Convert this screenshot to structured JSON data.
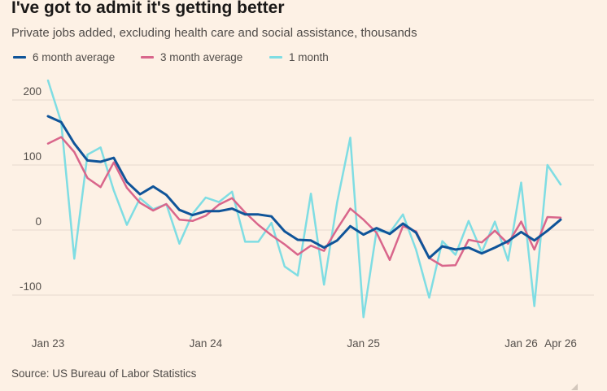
{
  "title": "I've got to admit it's getting better",
  "subtitle": "Private jobs added, excluding health care and social assistance, thousands",
  "source": "Source: US Bureau of Labor Statistics",
  "legend": [
    {
      "label": "6 month average",
      "color": "#0f5499"
    },
    {
      "label": "3 month average",
      "color": "#d9668b"
    },
    {
      "label": "1 month",
      "color": "#7fdde3"
    }
  ],
  "chart_data": {
    "type": "line",
    "x": [
      "2023-01",
      "2023-02",
      "2023-03",
      "2023-04",
      "2023-05",
      "2023-06",
      "2023-07",
      "2023-08",
      "2023-09",
      "2023-10",
      "2023-11",
      "2023-12",
      "2024-01",
      "2024-02",
      "2024-03",
      "2024-04",
      "2024-05",
      "2024-06",
      "2024-07",
      "2024-08",
      "2024-09",
      "2024-10",
      "2024-11",
      "2024-12",
      "2025-01",
      "2025-02",
      "2025-03",
      "2025-04",
      "2025-05",
      "2025-06",
      "2025-07",
      "2025-08",
      "2025-09",
      "2025-10",
      "2025-11",
      "2025-12",
      "2026-01",
      "2026-02",
      "2026-03",
      "2026-04"
    ],
    "x_tick_labels": [
      "Jan 23",
      "Jan 24",
      "Jan 25",
      "Jan 26",
      "Apr 26"
    ],
    "x_tick_positions": [
      "2023-01",
      "2024-01",
      "2025-01",
      "2026-01",
      "2026-04"
    ],
    "y_ticks": [
      200,
      100,
      0,
      -100
    ],
    "ylim": [
      -140,
      235
    ],
    "grid": "horizontal",
    "legend_position": "top-left",
    "series": [
      {
        "name": "6 month average",
        "color": "#0f5499",
        "width": 3,
        "values": [
          175,
          166,
          133,
          107,
          105,
          111,
          74,
          55,
          67,
          54,
          31,
          23,
          29,
          29,
          33,
          24,
          24,
          21,
          -2,
          -15,
          -16,
          -27,
          -16,
          6,
          -7,
          3,
          -6,
          10,
          -4,
          -43,
          -25,
          -30,
          -27,
          -36,
          -27,
          -17,
          -3,
          -16,
          -1,
          16
        ]
      },
      {
        "name": "3 month average",
        "color": "#d9668b",
        "width": 2.5,
        "values": [
          133,
          143,
          120,
          80,
          66,
          104,
          65,
          42,
          30,
          40,
          16,
          14,
          22,
          39,
          49,
          27,
          8,
          -8,
          -22,
          -38,
          -24,
          -32,
          2,
          33,
          16,
          -4,
          -46,
          6,
          -2,
          -43,
          -55,
          -54,
          -15,
          -19,
          -1,
          -21,
          13,
          -30,
          20,
          19
        ]
      },
      {
        "name": "1 month",
        "color": "#7fdde3",
        "width": 2.5,
        "values": [
          230,
          166,
          -44,
          116,
          127,
          61,
          8,
          49,
          32,
          40,
          -21,
          25,
          50,
          43,
          59,
          -18,
          -18,
          11,
          -56,
          -70,
          56,
          -84,
          43,
          142,
          -134,
          -1,
          -4,
          24,
          -30,
          -104,
          -17,
          -38,
          14,
          -34,
          13,
          -47,
          73,
          -117,
          100,
          70
        ]
      }
    ]
  }
}
